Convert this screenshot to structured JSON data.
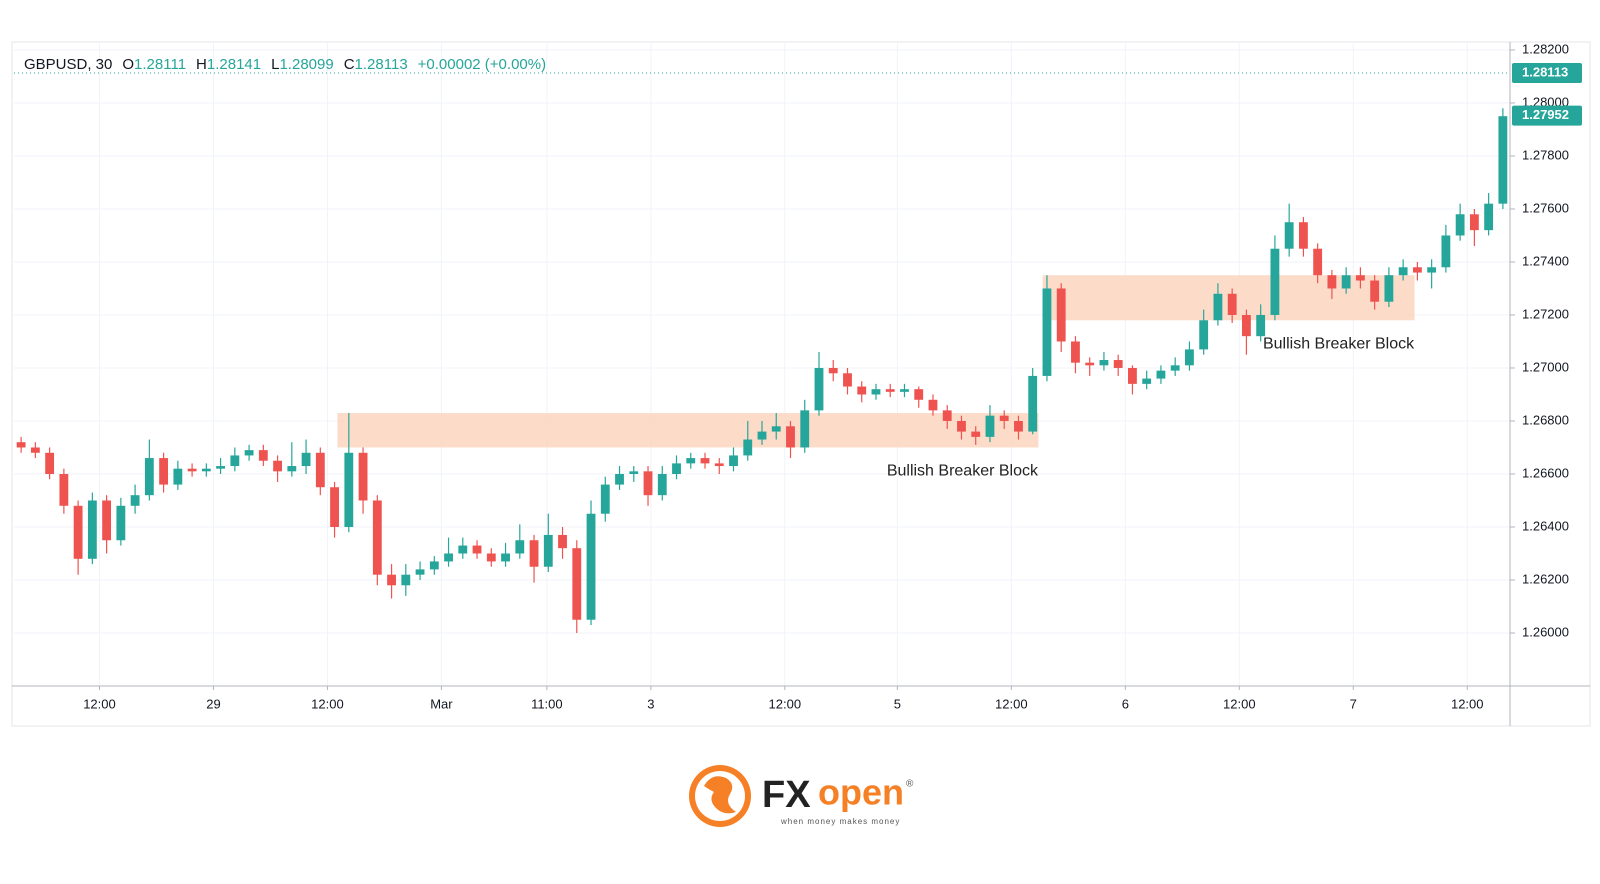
{
  "chart_data": {
    "type": "candlestick",
    "legend": {
      "symbol": "GBPUSD, 30",
      "fields": [
        {
          "key": "O",
          "value": "1.28111"
        },
        {
          "key": "H",
          "value": "1.28141"
        },
        {
          "key": "L",
          "value": "1.28099"
        },
        {
          "key": "C",
          "value": "1.28113"
        }
      ],
      "change": "+0.00002 (+0.00%)"
    },
    "up_color": "#26a69a",
    "down_color": "#ef5350",
    "xlim": [
      0,
      105
    ],
    "xticks": [
      {
        "value": 6,
        "label": "12:00"
      },
      {
        "value": 14,
        "label": "29"
      },
      {
        "value": 22,
        "label": "12:00"
      },
      {
        "value": 30,
        "label": "Mar"
      },
      {
        "value": 37.4,
        "label": "11:00"
      },
      {
        "value": 44.7,
        "label": "3"
      },
      {
        "value": 54.1,
        "label": "12:00"
      },
      {
        "value": 62,
        "label": "5"
      },
      {
        "value": 70,
        "label": "12:00"
      },
      {
        "value": 78,
        "label": "6"
      },
      {
        "value": 86,
        "label": "12:00"
      },
      {
        "value": 94,
        "label": "7"
      },
      {
        "value": 102,
        "label": "12:00"
      }
    ],
    "ylim": [
      1.258,
      1.2823
    ],
    "yticks": [
      {
        "value": 1.26,
        "label": "1.26000"
      },
      {
        "value": 1.262,
        "label": "1.26200"
      },
      {
        "value": 1.264,
        "label": "1.26400"
      },
      {
        "value": 1.266,
        "label": "1.26600"
      },
      {
        "value": 1.268,
        "label": "1.26800"
      },
      {
        "value": 1.27,
        "label": "1.27000"
      },
      {
        "value": 1.272,
        "label": "1.27200"
      },
      {
        "value": 1.274,
        "label": "1.27400"
      },
      {
        "value": 1.276,
        "label": "1.27600"
      },
      {
        "value": 1.278,
        "label": "1.27800"
      },
      {
        "value": 1.28,
        "label": "1.28000"
      },
      {
        "value": 1.282,
        "label": "1.28200"
      }
    ],
    "grid": true,
    "price_tags": [
      {
        "value": 1.28113,
        "label": "1.28113"
      },
      {
        "value": 1.27952,
        "label": "1.27952"
      }
    ],
    "annotations": [
      {
        "text": "Bullish Breaker Block",
        "x_range": [
          22.7,
          71.9
        ],
        "y_range": [
          1.267,
          1.2683
        ],
        "color": "#fbd5bf"
      },
      {
        "text": "Bullish Breaker Block",
        "x_range": [
          72.2,
          98.3
        ],
        "y_range": [
          1.2718,
          1.2735
        ],
        "color": "#fbd5bf"
      }
    ],
    "candles": [
      [
        1.2672,
        1.2674,
        1.2668,
        1.267
      ],
      [
        1.267,
        1.2672,
        1.2666,
        1.2668
      ],
      [
        1.2668,
        1.267,
        1.2658,
        1.266
      ],
      [
        1.266,
        1.2662,
        1.2645,
        1.2648
      ],
      [
        1.2648,
        1.265,
        1.2622,
        1.2628
      ],
      [
        1.2628,
        1.2653,
        1.2626,
        1.265
      ],
      [
        1.265,
        1.2652,
        1.263,
        1.2635
      ],
      [
        1.2635,
        1.2651,
        1.2633,
        1.2648
      ],
      [
        1.2648,
        1.2656,
        1.2645,
        1.2652
      ],
      [
        1.2652,
        1.2673,
        1.265,
        1.2666
      ],
      [
        1.2666,
        1.2668,
        1.2653,
        1.2656
      ],
      [
        1.2656,
        1.2665,
        1.2654,
        1.2662
      ],
      [
        1.2662,
        1.2664,
        1.2659,
        1.2661
      ],
      [
        1.2661,
        1.2664,
        1.2659,
        1.2662
      ],
      [
        1.2662,
        1.2666,
        1.266,
        1.2663
      ],
      [
        1.2663,
        1.267,
        1.2661,
        1.2667
      ],
      [
        1.2667,
        1.2671,
        1.2665,
        1.2669
      ],
      [
        1.2669,
        1.2671,
        1.2663,
        1.2665
      ],
      [
        1.2665,
        1.2667,
        1.2657,
        1.2661
      ],
      [
        1.2661,
        1.2672,
        1.2659,
        1.2663
      ],
      [
        1.2663,
        1.2673,
        1.266,
        1.2668
      ],
      [
        1.2668,
        1.267,
        1.2652,
        1.2655
      ],
      [
        1.2655,
        1.2657,
        1.2636,
        1.264
      ],
      [
        1.264,
        1.2683,
        1.2638,
        1.2668
      ],
      [
        1.2668,
        1.267,
        1.2645,
        1.265
      ],
      [
        1.265,
        1.2652,
        1.2618,
        1.2622
      ],
      [
        1.2622,
        1.2626,
        1.2613,
        1.2618
      ],
      [
        1.2618,
        1.2626,
        1.2614,
        1.2622
      ],
      [
        1.2622,
        1.2627,
        1.262,
        1.2624
      ],
      [
        1.2624,
        1.2629,
        1.2622,
        1.2627
      ],
      [
        1.2627,
        1.2636,
        1.2625,
        1.263
      ],
      [
        1.263,
        1.2636,
        1.2628,
        1.2633
      ],
      [
        1.2633,
        1.2635,
        1.2628,
        1.263
      ],
      [
        1.263,
        1.2632,
        1.2625,
        1.2627
      ],
      [
        1.2627,
        1.2634,
        1.2625,
        1.263
      ],
      [
        1.263,
        1.2641,
        1.2628,
        1.2635
      ],
      [
        1.2635,
        1.2637,
        1.2619,
        1.2625
      ],
      [
        1.2625,
        1.2645,
        1.2623,
        1.2637
      ],
      [
        1.2637,
        1.264,
        1.2628,
        1.2632
      ],
      [
        1.2632,
        1.2635,
        1.26,
        1.2605
      ],
      [
        1.2605,
        1.265,
        1.2603,
        1.2645
      ],
      [
        1.2645,
        1.2659,
        1.2642,
        1.2656
      ],
      [
        1.2656,
        1.2663,
        1.2654,
        1.266
      ],
      [
        1.266,
        1.2663,
        1.2657,
        1.2661
      ],
      [
        1.2661,
        1.2663,
        1.2648,
        1.2652
      ],
      [
        1.2652,
        1.2663,
        1.265,
        1.266
      ],
      [
        1.266,
        1.2667,
        1.2658,
        1.2664
      ],
      [
        1.2664,
        1.2668,
        1.2662,
        1.2666
      ],
      [
        1.2666,
        1.2668,
        1.2662,
        1.2664
      ],
      [
        1.2664,
        1.2666,
        1.266,
        1.2663
      ],
      [
        1.2663,
        1.267,
        1.2661,
        1.2667
      ],
      [
        1.2667,
        1.268,
        1.2665,
        1.2673
      ],
      [
        1.2673,
        1.268,
        1.2671,
        1.2676
      ],
      [
        1.2676,
        1.2683,
        1.2673,
        1.2678
      ],
      [
        1.2678,
        1.268,
        1.2666,
        1.267
      ],
      [
        1.267,
        1.2688,
        1.2668,
        1.2684
      ],
      [
        1.2684,
        1.2706,
        1.2682,
        1.27
      ],
      [
        1.27,
        1.2703,
        1.2695,
        1.2698
      ],
      [
        1.2698,
        1.27,
        1.269,
        1.2693
      ],
      [
        1.2693,
        1.2695,
        1.2687,
        1.269
      ],
      [
        1.269,
        1.2694,
        1.2688,
        1.2692
      ],
      [
        1.2692,
        1.2694,
        1.2689,
        1.2691
      ],
      [
        1.2691,
        1.2694,
        1.2689,
        1.2692
      ],
      [
        1.2692,
        1.2693,
        1.2685,
        1.2688
      ],
      [
        1.2688,
        1.269,
        1.2682,
        1.2684
      ],
      [
        1.2684,
        1.2686,
        1.2677,
        1.268
      ],
      [
        1.268,
        1.2682,
        1.2673,
        1.2676
      ],
      [
        1.2676,
        1.2678,
        1.2671,
        1.2674
      ],
      [
        1.2674,
        1.2686,
        1.2672,
        1.2682
      ],
      [
        1.2682,
        1.2684,
        1.2677,
        1.268
      ],
      [
        1.268,
        1.2682,
        1.2673,
        1.2676
      ],
      [
        1.2676,
        1.27,
        1.2675,
        1.2697
      ],
      [
        1.2697,
        1.2735,
        1.2695,
        1.273
      ],
      [
        1.273,
        1.2732,
        1.2706,
        1.271
      ],
      [
        1.271,
        1.2712,
        1.2698,
        1.2702
      ],
      [
        1.2702,
        1.2704,
        1.2697,
        1.2701
      ],
      [
        1.2701,
        1.2706,
        1.2699,
        1.2703
      ],
      [
        1.2703,
        1.2705,
        1.2697,
        1.27
      ],
      [
        1.27,
        1.2701,
        1.269,
        1.2694
      ],
      [
        1.2694,
        1.2699,
        1.2692,
        1.2696
      ],
      [
        1.2696,
        1.2701,
        1.2694,
        1.2699
      ],
      [
        1.2699,
        1.2704,
        1.2697,
        1.2701
      ],
      [
        1.2701,
        1.271,
        1.2699,
        1.2707
      ],
      [
        1.2707,
        1.2722,
        1.2705,
        1.2718
      ],
      [
        1.2718,
        1.2732,
        1.2716,
        1.2728
      ],
      [
        1.2728,
        1.273,
        1.2717,
        1.272
      ],
      [
        1.272,
        1.2722,
        1.2705,
        1.2712
      ],
      [
        1.2712,
        1.2724,
        1.271,
        1.272
      ],
      [
        1.272,
        1.275,
        1.2718,
        1.2745
      ],
      [
        1.2745,
        1.2762,
        1.2742,
        1.2755
      ],
      [
        1.2755,
        1.2757,
        1.2742,
        1.2745
      ],
      [
        1.2745,
        1.2747,
        1.2732,
        1.2735
      ],
      [
        1.2735,
        1.2737,
        1.2726,
        1.273
      ],
      [
        1.273,
        1.2738,
        1.2728,
        1.2735
      ],
      [
        1.2735,
        1.2738,
        1.273,
        1.2733
      ],
      [
        1.2733,
        1.2735,
        1.2722,
        1.2725
      ],
      [
        1.2725,
        1.2738,
        1.2723,
        1.2735
      ],
      [
        1.2735,
        1.2741,
        1.2733,
        1.2738
      ],
      [
        1.2738,
        1.274,
        1.2733,
        1.2736
      ],
      [
        1.2736,
        1.2741,
        1.273,
        1.2738
      ],
      [
        1.2738,
        1.2754,
        1.2736,
        1.275
      ],
      [
        1.275,
        1.2762,
        1.2748,
        1.2758
      ],
      [
        1.2758,
        1.276,
        1.2746,
        1.2752
      ],
      [
        1.2752,
        1.2766,
        1.275,
        1.2762
      ],
      [
        1.2762,
        1.2798,
        1.276,
        1.2795
      ]
    ]
  },
  "logo": {
    "fx": "FX",
    "open": "open",
    "registered": "®",
    "tagline": "when money makes money"
  }
}
